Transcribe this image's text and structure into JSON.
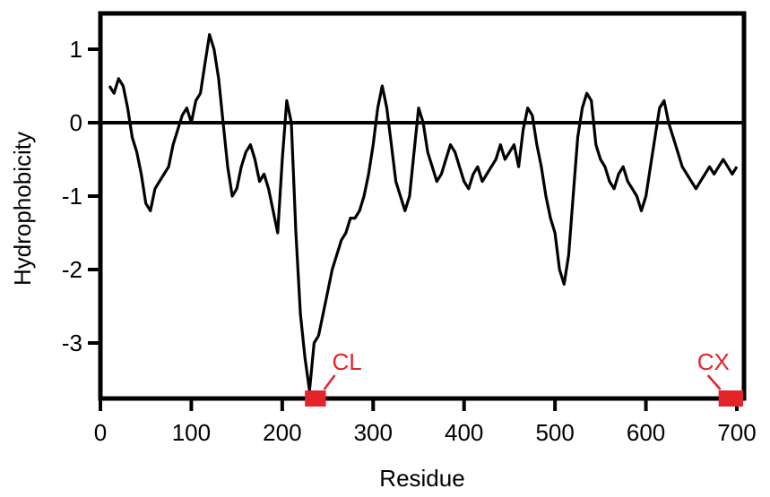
{
  "chart_data": {
    "type": "line",
    "title": "",
    "xlabel": "Residue",
    "ylabel": "Hydrophobicity",
    "xlim": [
      0,
      710
    ],
    "ylim": [
      -3.8,
      1.5
    ],
    "xticks": [
      0,
      100,
      200,
      300,
      400,
      500,
      600,
      700
    ],
    "yticks": [
      1,
      0,
      -1,
      -2,
      -3
    ],
    "xtick_labels": [
      "0",
      "100",
      "200",
      "300",
      "400",
      "500",
      "600",
      "700"
    ],
    "ytick_labels": [
      "1",
      "0",
      "-1",
      "-2",
      "-3"
    ],
    "zero_line": 0,
    "line_color": "#000000",
    "grid": false,
    "series": [
      {
        "x": [
          10,
          15,
          20,
          25,
          30,
          35,
          40,
          45,
          50,
          55,
          60,
          65,
          70,
          75,
          80,
          85,
          90,
          95,
          100,
          105,
          110,
          115,
          120,
          125,
          130,
          135,
          140,
          145,
          150,
          155,
          160,
          165,
          170,
          175,
          180,
          185,
          190,
          195,
          200,
          205,
          210,
          215,
          220,
          225,
          230,
          235,
          240,
          245,
          250,
          255,
          260,
          265,
          270,
          275,
          280,
          285,
          290,
          295,
          300,
          305,
          310,
          315,
          320,
          325,
          330,
          335,
          340,
          345,
          350,
          355,
          360,
          365,
          370,
          375,
          380,
          385,
          390,
          395,
          400,
          405,
          410,
          415,
          420,
          425,
          430,
          435,
          440,
          445,
          450,
          455,
          460,
          465,
          470,
          475,
          480,
          485,
          490,
          495,
          500,
          505,
          510,
          515,
          520,
          525,
          530,
          535,
          540,
          545,
          550,
          555,
          560,
          565,
          570,
          575,
          580,
          585,
          590,
          595,
          600,
          605,
          610,
          615,
          620,
          625,
          630,
          635,
          640,
          645,
          650,
          655,
          660,
          665,
          670,
          675,
          680,
          685,
          690,
          695,
          700
        ],
        "values": [
          0.5,
          0.4,
          0.6,
          0.5,
          0.2,
          -0.2,
          -0.4,
          -0.7,
          -1.1,
          -1.2,
          -0.9,
          -0.8,
          -0.7,
          -0.6,
          -0.3,
          -0.1,
          0.1,
          0.2,
          0.0,
          0.3,
          0.4,
          0.8,
          1.2,
          1.0,
          0.6,
          0.0,
          -0.6,
          -1.0,
          -0.9,
          -0.6,
          -0.4,
          -0.3,
          -0.5,
          -0.8,
          -0.7,
          -0.9,
          -1.2,
          -1.5,
          -0.5,
          0.3,
          0.0,
          -1.5,
          -2.6,
          -3.2,
          -3.65,
          -3.0,
          -2.9,
          -2.6,
          -2.3,
          -2.0,
          -1.8,
          -1.6,
          -1.5,
          -1.3,
          -1.3,
          -1.2,
          -1.0,
          -0.7,
          -0.3,
          0.2,
          0.5,
          0.2,
          -0.3,
          -0.8,
          -1.0,
          -1.2,
          -1.0,
          -0.4,
          0.2,
          0.0,
          -0.4,
          -0.6,
          -0.8,
          -0.7,
          -0.5,
          -0.3,
          -0.4,
          -0.6,
          -0.8,
          -0.9,
          -0.7,
          -0.6,
          -0.8,
          -0.7,
          -0.6,
          -0.5,
          -0.3,
          -0.5,
          -0.4,
          -0.3,
          -0.6,
          -0.1,
          0.2,
          0.1,
          -0.3,
          -0.6,
          -1.0,
          -1.3,
          -1.5,
          -2.0,
          -2.2,
          -1.8,
          -1.0,
          -0.2,
          0.2,
          0.4,
          0.3,
          -0.3,
          -0.5,
          -0.6,
          -0.8,
          -0.9,
          -0.7,
          -0.6,
          -0.8,
          -0.9,
          -1.0,
          -1.2,
          -1.0,
          -0.6,
          -0.2,
          0.2,
          0.3,
          0.0,
          -0.2,
          -0.4,
          -0.6,
          -0.7,
          -0.8,
          -0.9,
          -0.8,
          -0.7,
          -0.6,
          -0.7,
          -0.6,
          -0.5,
          -0.6,
          -0.7,
          -0.6
        ]
      }
    ],
    "annotations": [
      {
        "label": "CL",
        "color": "#e4232b",
        "x_start": 225,
        "x_end": 248
      },
      {
        "label": "CX",
        "color": "#e4232b",
        "x_start": 680,
        "x_end": 707
      }
    ]
  }
}
